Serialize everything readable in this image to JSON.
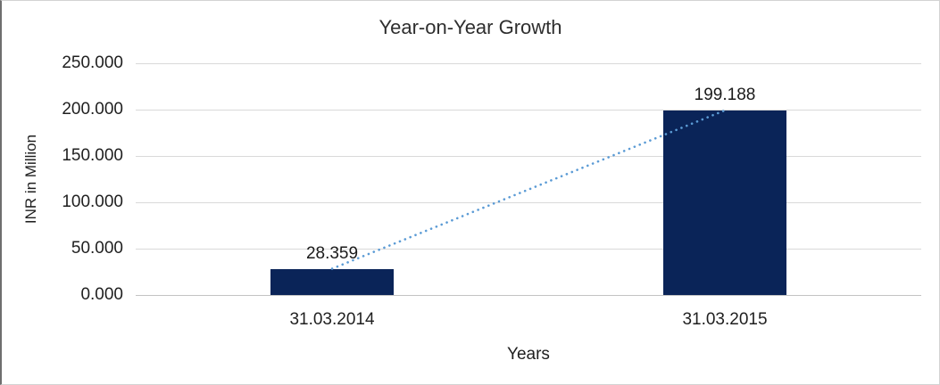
{
  "chart_data": {
    "type": "bar",
    "title": "Year-on-Year Growth",
    "xlabel": "Years",
    "ylabel": "INR in Million",
    "categories": [
      "31.03.2014",
      "31.03.2015"
    ],
    "values": [
      28.359,
      199.188
    ],
    "data_labels": [
      "28.359",
      "199.188"
    ],
    "y_ticks": [
      "250.000",
      "200.000",
      "150.000",
      "100.000",
      "50.000",
      "0.000"
    ],
    "ylim": [
      0,
      250
    ],
    "y_tick_step": 50,
    "grid": true,
    "legend": "none",
    "bar_color": "#0a2458",
    "gridline_color": "#d9d9d9",
    "trendline": {
      "type": "linear",
      "style": "dotted",
      "color": "#5b9bd5"
    }
  }
}
